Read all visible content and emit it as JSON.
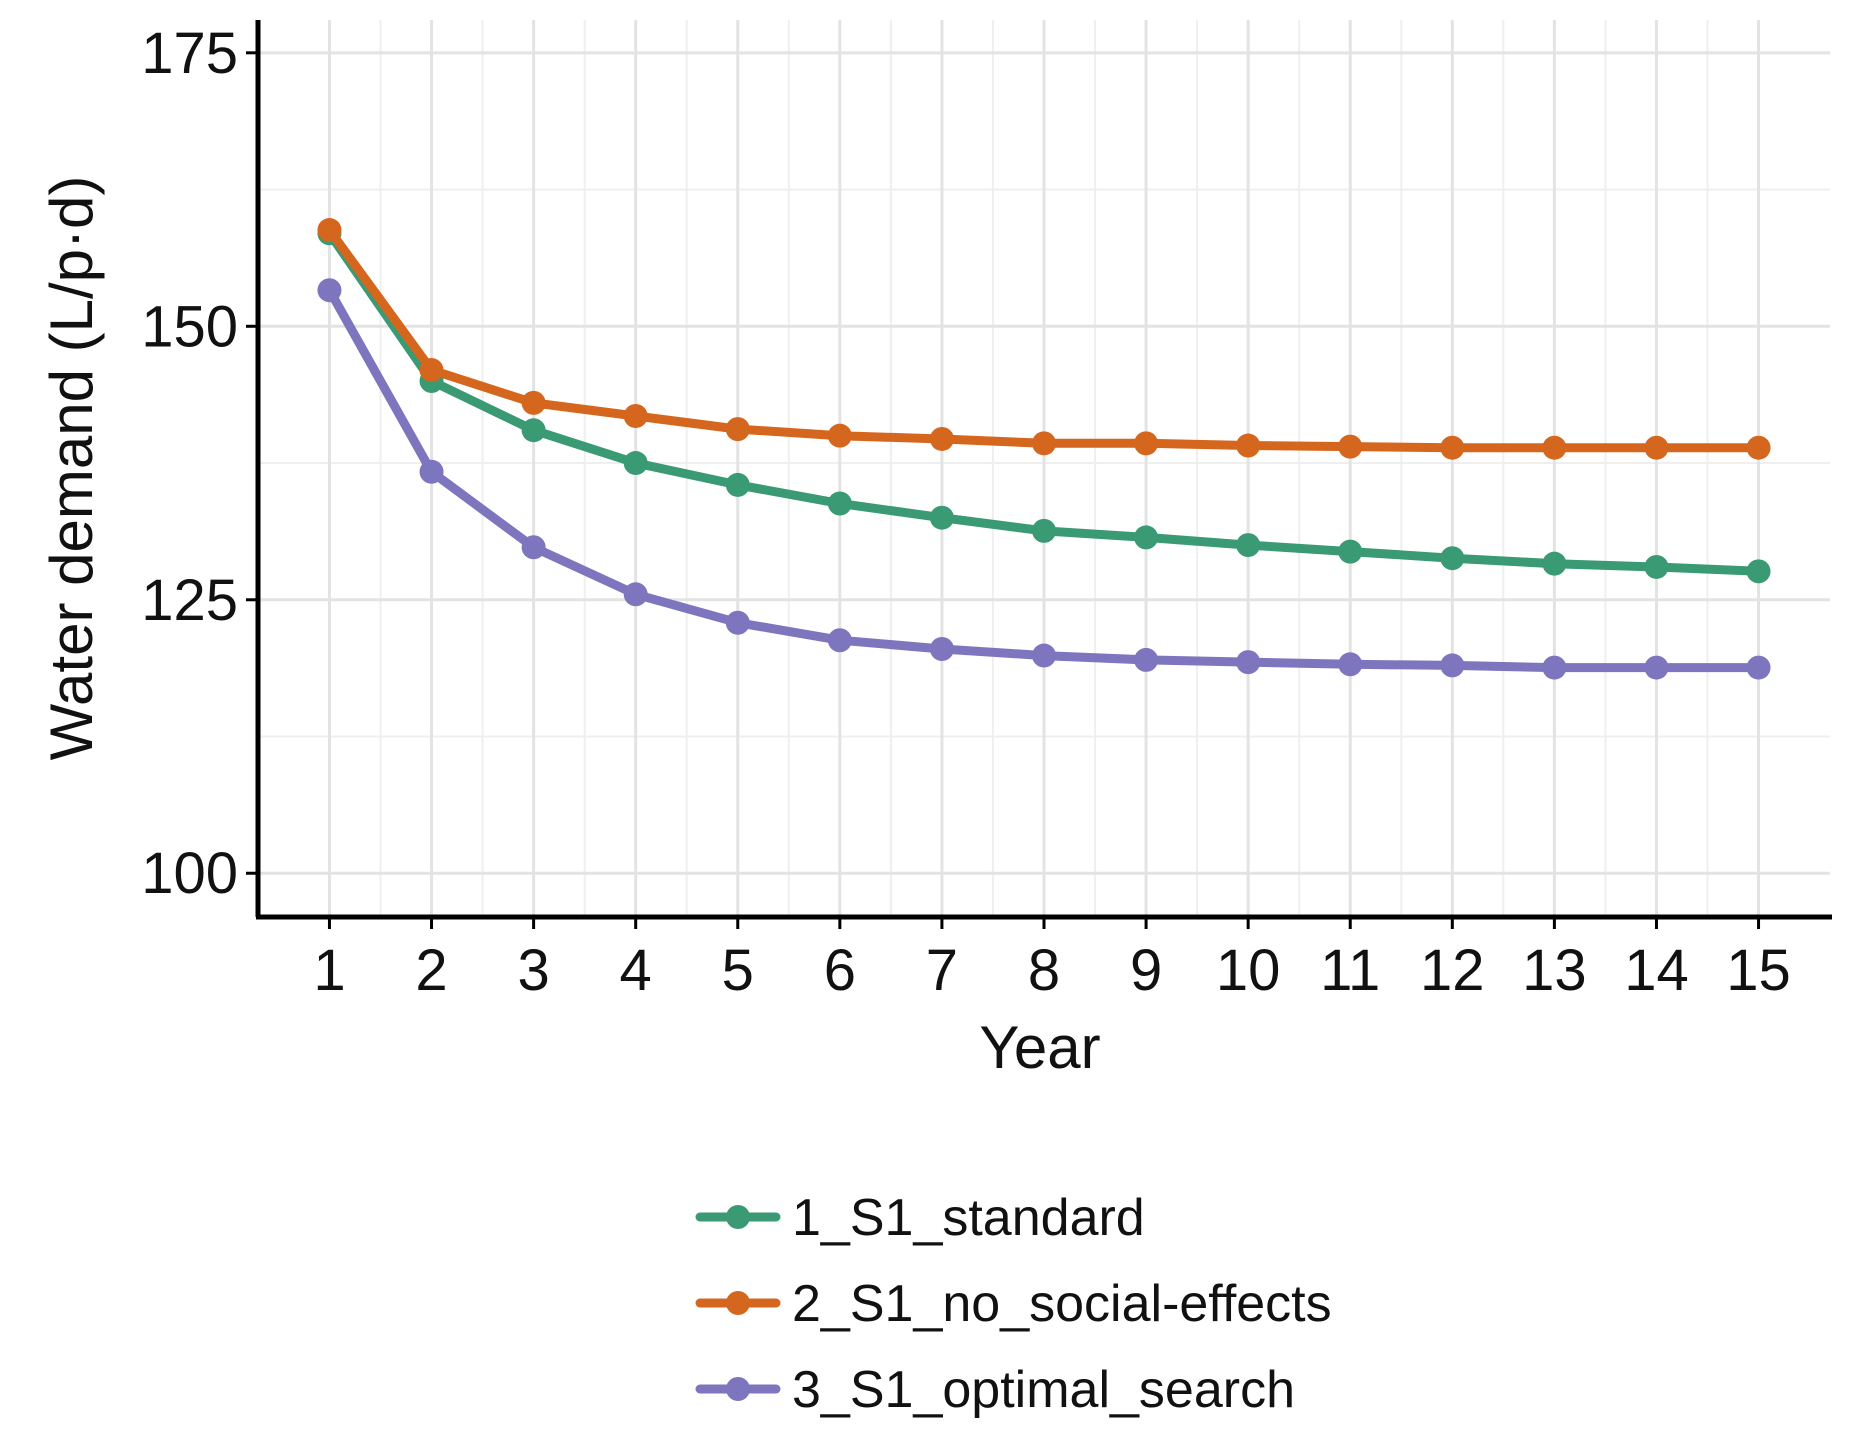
{
  "chart_data": {
    "type": "line",
    "title": "",
    "xlabel": "Year",
    "ylabel": "Water demand (L/p·d)",
    "x": [
      1,
      2,
      3,
      4,
      5,
      6,
      7,
      8,
      9,
      10,
      11,
      12,
      13,
      14,
      15
    ],
    "x_tick_labels": [
      "1",
      "2",
      "3",
      "4",
      "5",
      "6",
      "7",
      "8",
      "9",
      "10",
      "11",
      "12",
      "13",
      "14",
      "15"
    ],
    "y_ticks": [
      100,
      125,
      150,
      175
    ],
    "y_tick_labels": [
      "100",
      "125",
      "150",
      "175"
    ],
    "xlim": [
      0.3,
      15.7
    ],
    "ylim": [
      96,
      178
    ],
    "grid": true,
    "legend_position": "bottom",
    "series": [
      {
        "name": "1_S1_standard",
        "color": "#3a9a73",
        "values": [
          158.5,
          145.0,
          140.5,
          137.5,
          135.5,
          133.8,
          132.5,
          131.3,
          130.7,
          130.0,
          129.4,
          128.8,
          128.3,
          128.0,
          127.6
        ]
      },
      {
        "name": "2_S1_no_social-effects",
        "color": "#d5661e",
        "values": [
          158.8,
          146.0,
          143.0,
          141.8,
          140.6,
          140.0,
          139.7,
          139.3,
          139.3,
          139.1,
          139.0,
          138.9,
          138.9,
          138.9,
          138.9
        ]
      },
      {
        "name": "3_S1_optimal_search",
        "color": "#7d75bd",
        "values": [
          153.3,
          136.7,
          129.8,
          125.5,
          122.9,
          121.3,
          120.5,
          119.9,
          119.5,
          119.3,
          119.1,
          119.0,
          118.8,
          118.8,
          118.8
        ]
      }
    ]
  }
}
